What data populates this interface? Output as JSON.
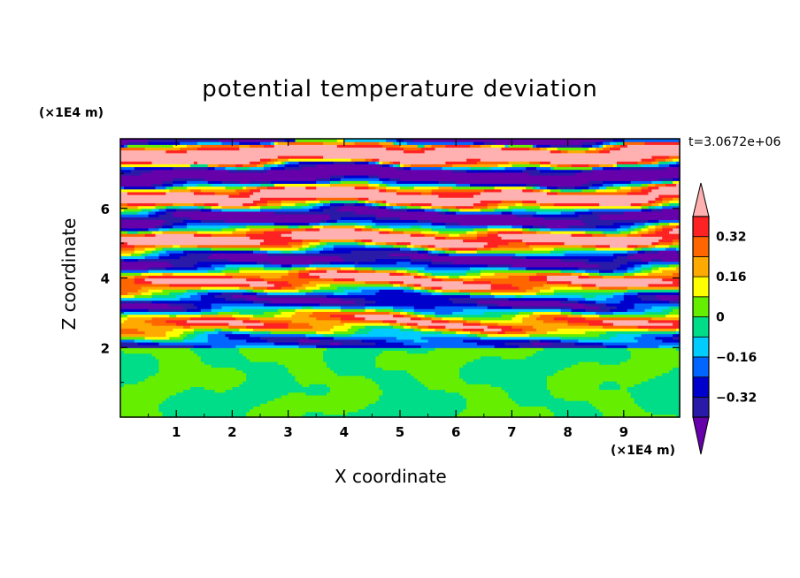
{
  "chart_data": {
    "type": "heatmap",
    "title": "potential temperature deviation",
    "xlabel": "X coordinate",
    "ylabel": "Z coordinate",
    "x_unit": "(×1E4 m)",
    "z_unit": "(×1E4 m)",
    "time_label": "t=3.0672e+06",
    "xlim": [
      0,
      10
    ],
    "ylim": [
      0,
      8
    ],
    "x_ticks": [
      "1",
      "2",
      "3",
      "4",
      "5",
      "6",
      "7",
      "8",
      "9"
    ],
    "y_ticks": [
      "2",
      "4",
      "6"
    ],
    "colorbar": {
      "ticks": [
        "0.32",
        "0.16",
        "0",
        "−0.16",
        "−0.32"
      ],
      "levels": [
        -0.4,
        -0.32,
        -0.24,
        -0.16,
        -0.08,
        0,
        0.08,
        0.16,
        0.24,
        0.32,
        0.4
      ],
      "colors": [
        "#6600aa",
        "#2a1aa8",
        "#0000cc",
        "#0066ff",
        "#00ccff",
        "#00dd88",
        "#66ee00",
        "#ffff00",
        "#ffaa00",
        "#ff6600",
        "#ff2222",
        "#ffb0b0"
      ]
    },
    "regions": [
      {
        "z_range": [
          0,
          2.0
        ],
        "description": "near-neutral layer, values about -0.04 to 0.04"
      },
      {
        "z_range": [
          2.0,
          8.0
        ],
        "description": "layered horizontal bands alternating about -0.4 to 0.4"
      }
    ]
  }
}
